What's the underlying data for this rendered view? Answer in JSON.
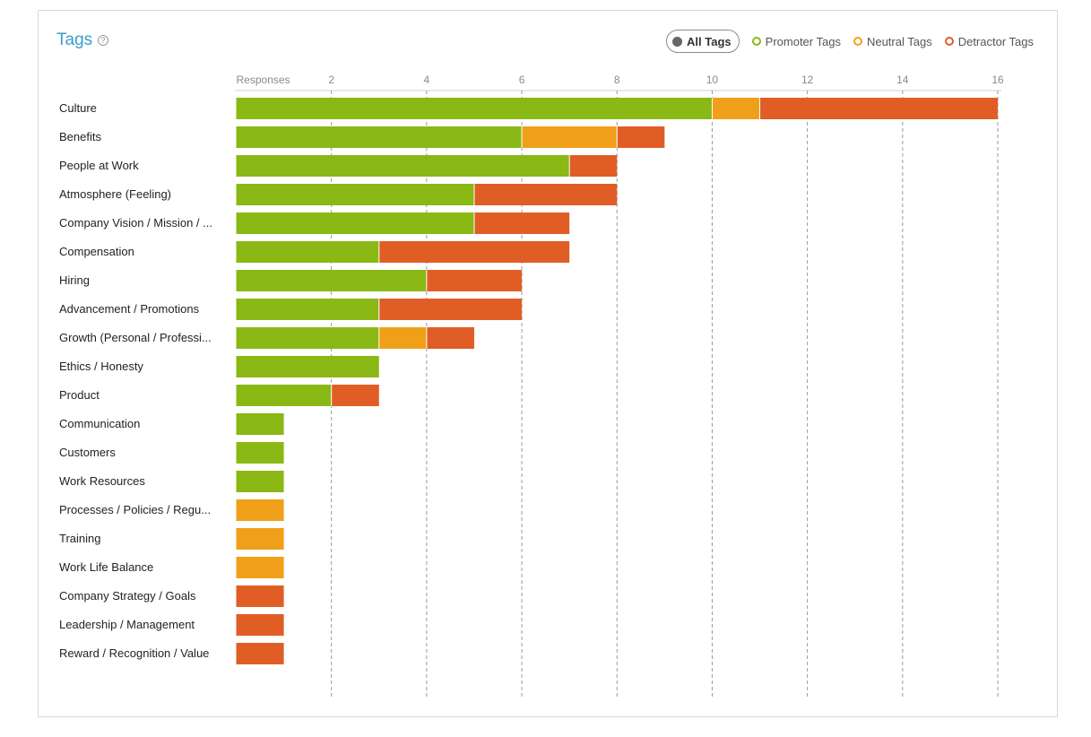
{
  "header": {
    "title": "Tags",
    "help_glyph": "?"
  },
  "legend": {
    "items": [
      {
        "label": "All Tags",
        "color": "#666666",
        "active": true
      },
      {
        "label": "Promoter Tags",
        "color": "#8ab814",
        "active": false
      },
      {
        "label": "Neutral Tags",
        "color": "#f0a018",
        "active": false
      },
      {
        "label": "Detractor Tags",
        "color": "#e05e26",
        "active": false
      }
    ]
  },
  "chart_data": {
    "type": "bar",
    "orientation": "horizontal",
    "stacked": true,
    "axis_label": "Responses",
    "xlim": [
      0,
      16
    ],
    "ticks": [
      2,
      4,
      6,
      8,
      10,
      12,
      14,
      16
    ],
    "grid": true,
    "categories": [
      "Culture",
      "Benefits",
      "People at Work",
      "Atmosphere (Feeling)",
      "Company Vision / Mission / ...",
      "Compensation",
      "Hiring",
      "Advancement / Promotions",
      "Growth (Personal / Professi...",
      "Ethics / Honesty",
      "Product",
      "Communication",
      "Customers",
      "Work Resources",
      "Processes / Policies / Regu...",
      "Training",
      "Work Life Balance",
      "Company Strategy / Goals",
      "Leadership / Management",
      "Reward / Recognition / Value"
    ],
    "series": [
      {
        "name": "Promoter Tags",
        "color": "#8ab814",
        "values": [
          10,
          6,
          7,
          5,
          5,
          3,
          4,
          3,
          3,
          3,
          2,
          1,
          1,
          1,
          0,
          0,
          0,
          0,
          0,
          0
        ]
      },
      {
        "name": "Neutral Tags",
        "color": "#f0a018",
        "values": [
          1,
          2,
          0,
          0,
          0,
          0,
          0,
          0,
          1,
          0,
          0,
          0,
          0,
          0,
          1,
          1,
          1,
          0,
          0,
          0
        ]
      },
      {
        "name": "Detractor Tags",
        "color": "#e05e26",
        "values": [
          5,
          1,
          1,
          3,
          2,
          4,
          2,
          3,
          1,
          0,
          1,
          0,
          0,
          0,
          0,
          0,
          0,
          1,
          1,
          1
        ]
      }
    ]
  }
}
